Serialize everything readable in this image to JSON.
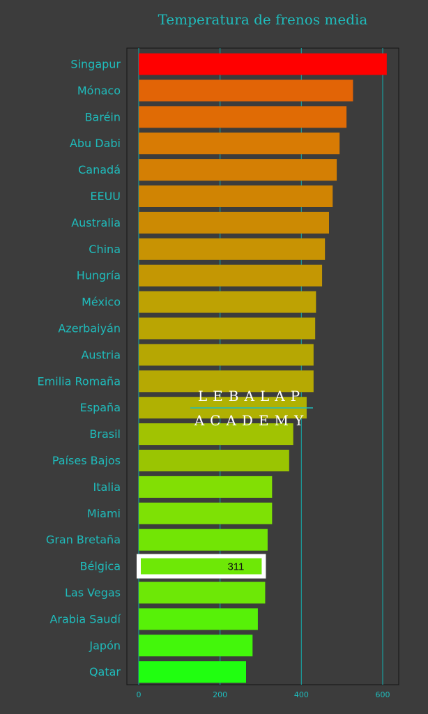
{
  "chart_data": {
    "type": "bar",
    "orientation": "horizontal",
    "title": "Temperatura de frenos media",
    "xlabel": "",
    "ylabel": "",
    "xlim": [
      -30,
      630
    ],
    "xticks": [
      0,
      200,
      400,
      600
    ],
    "grid": true,
    "categories": [
      "Singapur",
      "Mónaco",
      "Baréin",
      "Abu Dabi",
      "Canadá",
      "EEUU",
      "Australia",
      "China",
      "Hungría",
      "México",
      "Azerbaiyán",
      "Austria",
      "Emilia Romaña",
      "España",
      "Brasil",
      "Países Bajos",
      "Italia",
      "Miami",
      "Gran Bretaña",
      "Bélgica",
      "Las Vegas",
      "Arabia Saudí",
      "Japón",
      "Qatar"
    ],
    "values": [
      610,
      527,
      511,
      494,
      487,
      477,
      468,
      458,
      451,
      436,
      434,
      430,
      430,
      413,
      380,
      370,
      328,
      328,
      317,
      311,
      311,
      293,
      280,
      264
    ],
    "colors": [
      "#ff0000",
      "#e26406",
      "#e06b05",
      "#d87b04",
      "#d47f04",
      "#d08403",
      "#cc8a03",
      "#c89303",
      "#c49703",
      "#bea203",
      "#baa503",
      "#b6a703",
      "#b6a903",
      "#b0b102",
      "#a1c302",
      "#9ac502",
      "#82df04",
      "#7ee105",
      "#72e505",
      "#6ee806",
      "#6de806",
      "#57f108",
      "#43f70b",
      "#20ff10"
    ],
    "highlight": {
      "category": "Bélgica",
      "label": "311"
    }
  },
  "watermark": {
    "line1": "LEBALAP",
    "line2": "ACADEMY"
  }
}
